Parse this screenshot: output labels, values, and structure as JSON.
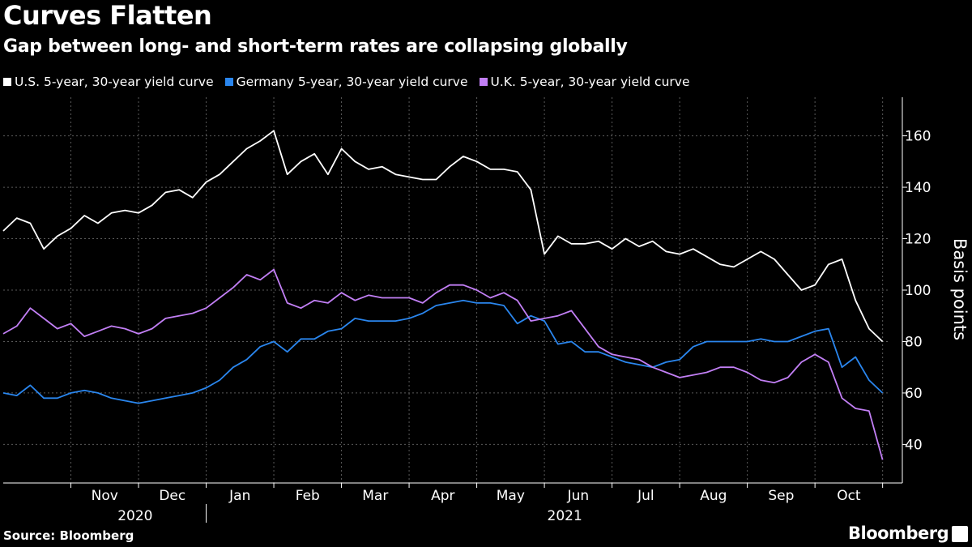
{
  "title": "Curves Flatten",
  "subtitle": "Gap between long- and short-term rates are collapsing globally",
  "source": "Source: Bloomberg",
  "brand": "Bloomberg",
  "colors": {
    "us": "#ffffff",
    "germany": "#2a86ee",
    "uk": "#c27ff5",
    "grid": "#5a5a5a",
    "axis": "#ffffff"
  },
  "chart_data": {
    "type": "line",
    "title": "Curves Flatten",
    "ylabel": "Basis points",
    "xlabel": "",
    "ylim": [
      25,
      175
    ],
    "yticks": [
      40,
      60,
      80,
      100,
      120,
      140,
      160
    ],
    "x_months": [
      "Nov",
      "Dec",
      "Jan",
      "Feb",
      "Mar",
      "Apr",
      "May",
      "Jun",
      "Jul",
      "Aug",
      "Sep",
      "Oct"
    ],
    "x_years": [
      "2020",
      "2021"
    ],
    "x_note": "x = months since 2020-10-01",
    "xlim": [
      0,
      13.1
    ],
    "series": [
      {
        "name": "U.S. 5-year, 30-year yield curve",
        "color_key": "us",
        "x": [
          0.0,
          0.2,
          0.4,
          0.6,
          0.8,
          1.0,
          1.2,
          1.4,
          1.6,
          1.8,
          2.0,
          2.2,
          2.4,
          2.6,
          2.8,
          3.0,
          3.2,
          3.4,
          3.6,
          3.8,
          4.0,
          4.2,
          4.4,
          4.6,
          4.8,
          5.0,
          5.2,
          5.4,
          5.6,
          5.8,
          6.0,
          6.2,
          6.4,
          6.6,
          6.8,
          7.0,
          7.2,
          7.4,
          7.6,
          7.8,
          8.0,
          8.2,
          8.4,
          8.6,
          8.8,
          9.0,
          9.2,
          9.4,
          9.6,
          9.8,
          10.0,
          10.2,
          10.4,
          10.6,
          10.8,
          11.0,
          11.2,
          11.4,
          11.6,
          11.8,
          12.0,
          12.2,
          12.4,
          12.6,
          12.8,
          13.0
        ],
        "values": [
          123,
          128,
          126,
          116,
          121,
          124,
          129,
          126,
          130,
          131,
          130,
          133,
          138,
          139,
          136,
          142,
          145,
          150,
          155,
          158,
          162,
          145,
          150,
          153,
          145,
          155,
          150,
          147,
          148,
          145,
          144,
          143,
          143,
          148,
          152,
          150,
          147,
          147,
          146,
          139,
          114,
          121,
          118,
          118,
          119,
          116,
          120,
          117,
          119,
          115,
          114,
          116,
          113,
          110,
          109,
          112,
          115,
          112,
          106,
          100,
          102,
          110,
          112,
          96,
          85,
          80
        ]
      },
      {
        "name": "Germany 5-year, 30-year yield curve",
        "color_key": "germany",
        "x": [
          0.0,
          0.2,
          0.4,
          0.6,
          0.8,
          1.0,
          1.2,
          1.4,
          1.6,
          1.8,
          2.0,
          2.2,
          2.4,
          2.6,
          2.8,
          3.0,
          3.2,
          3.4,
          3.6,
          3.8,
          4.0,
          4.2,
          4.4,
          4.6,
          4.8,
          5.0,
          5.2,
          5.4,
          5.6,
          5.8,
          6.0,
          6.2,
          6.4,
          6.6,
          6.8,
          7.0,
          7.2,
          7.4,
          7.6,
          7.8,
          8.0,
          8.2,
          8.4,
          8.6,
          8.8,
          9.0,
          9.2,
          9.4,
          9.6,
          9.8,
          10.0,
          10.2,
          10.4,
          10.6,
          10.8,
          11.0,
          11.2,
          11.4,
          11.6,
          11.8,
          12.0,
          12.2,
          12.4,
          12.6,
          12.8,
          13.0
        ],
        "values": [
          60,
          59,
          63,
          58,
          58,
          60,
          61,
          60,
          58,
          57,
          56,
          57,
          58,
          59,
          60,
          62,
          65,
          70,
          73,
          78,
          80,
          76,
          81,
          81,
          84,
          85,
          89,
          88,
          88,
          88,
          89,
          91,
          94,
          95,
          96,
          95,
          95,
          94,
          87,
          90,
          88,
          79,
          80,
          76,
          76,
          74,
          72,
          71,
          70,
          72,
          73,
          78,
          80,
          80,
          80,
          80,
          81,
          80,
          80,
          82,
          84,
          85,
          70,
          74,
          65,
          60
        ]
      },
      {
        "name": "U.K. 5-year, 30-year yield curve",
        "color_key": "uk",
        "x": [
          0.0,
          0.2,
          0.4,
          0.6,
          0.8,
          1.0,
          1.2,
          1.4,
          1.6,
          1.8,
          2.0,
          2.2,
          2.4,
          2.6,
          2.8,
          3.0,
          3.2,
          3.4,
          3.6,
          3.8,
          4.0,
          4.2,
          4.4,
          4.6,
          4.8,
          5.0,
          5.2,
          5.4,
          5.6,
          5.8,
          6.0,
          6.2,
          6.4,
          6.6,
          6.8,
          7.0,
          7.2,
          7.4,
          7.6,
          7.8,
          8.0,
          8.2,
          8.4,
          8.6,
          8.8,
          9.0,
          9.2,
          9.4,
          9.6,
          9.8,
          10.0,
          10.2,
          10.4,
          10.6,
          10.8,
          11.0,
          11.2,
          11.4,
          11.6,
          11.8,
          12.0,
          12.2,
          12.4,
          12.6,
          12.8,
          13.0
        ],
        "values": [
          83,
          86,
          93,
          89,
          85,
          87,
          82,
          84,
          86,
          85,
          83,
          85,
          89,
          90,
          91,
          93,
          97,
          101,
          106,
          104,
          108,
          95,
          93,
          96,
          95,
          99,
          96,
          98,
          97,
          97,
          97,
          95,
          99,
          102,
          102,
          100,
          97,
          99,
          96,
          88,
          89,
          90,
          92,
          85,
          78,
          75,
          74,
          73,
          70,
          68,
          66,
          67,
          68,
          70,
          70,
          68,
          65,
          64,
          66,
          72,
          75,
          72,
          58,
          54,
          53,
          34
        ]
      }
    ]
  }
}
